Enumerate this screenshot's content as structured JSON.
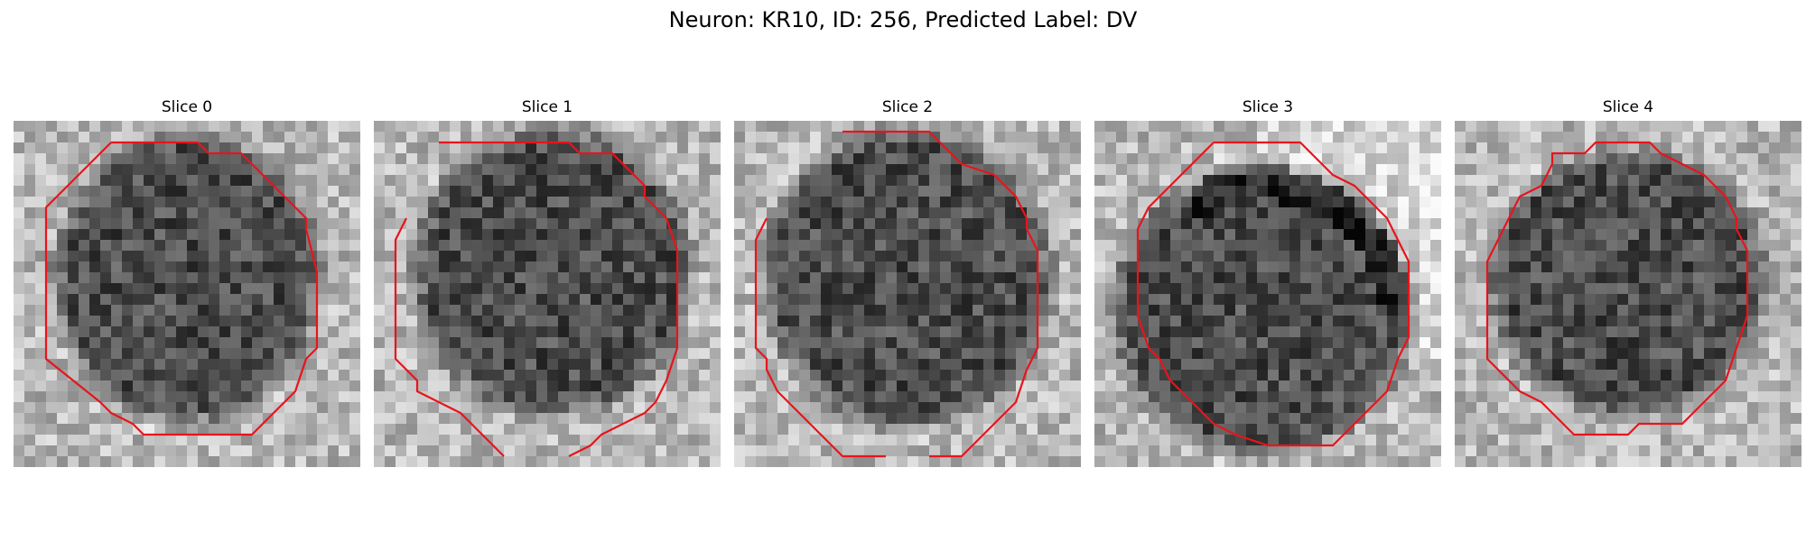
{
  "figure": {
    "title": "Neuron: KR10, ID: 256, Predicted Label: DV",
    "contour_color": "#e8141c",
    "slices": [
      {
        "title": "Slice 0"
      },
      {
        "title": "Slice 1"
      },
      {
        "title": "Slice 2"
      },
      {
        "title": "Slice 3"
      },
      {
        "title": "Slice 4"
      }
    ]
  }
}
